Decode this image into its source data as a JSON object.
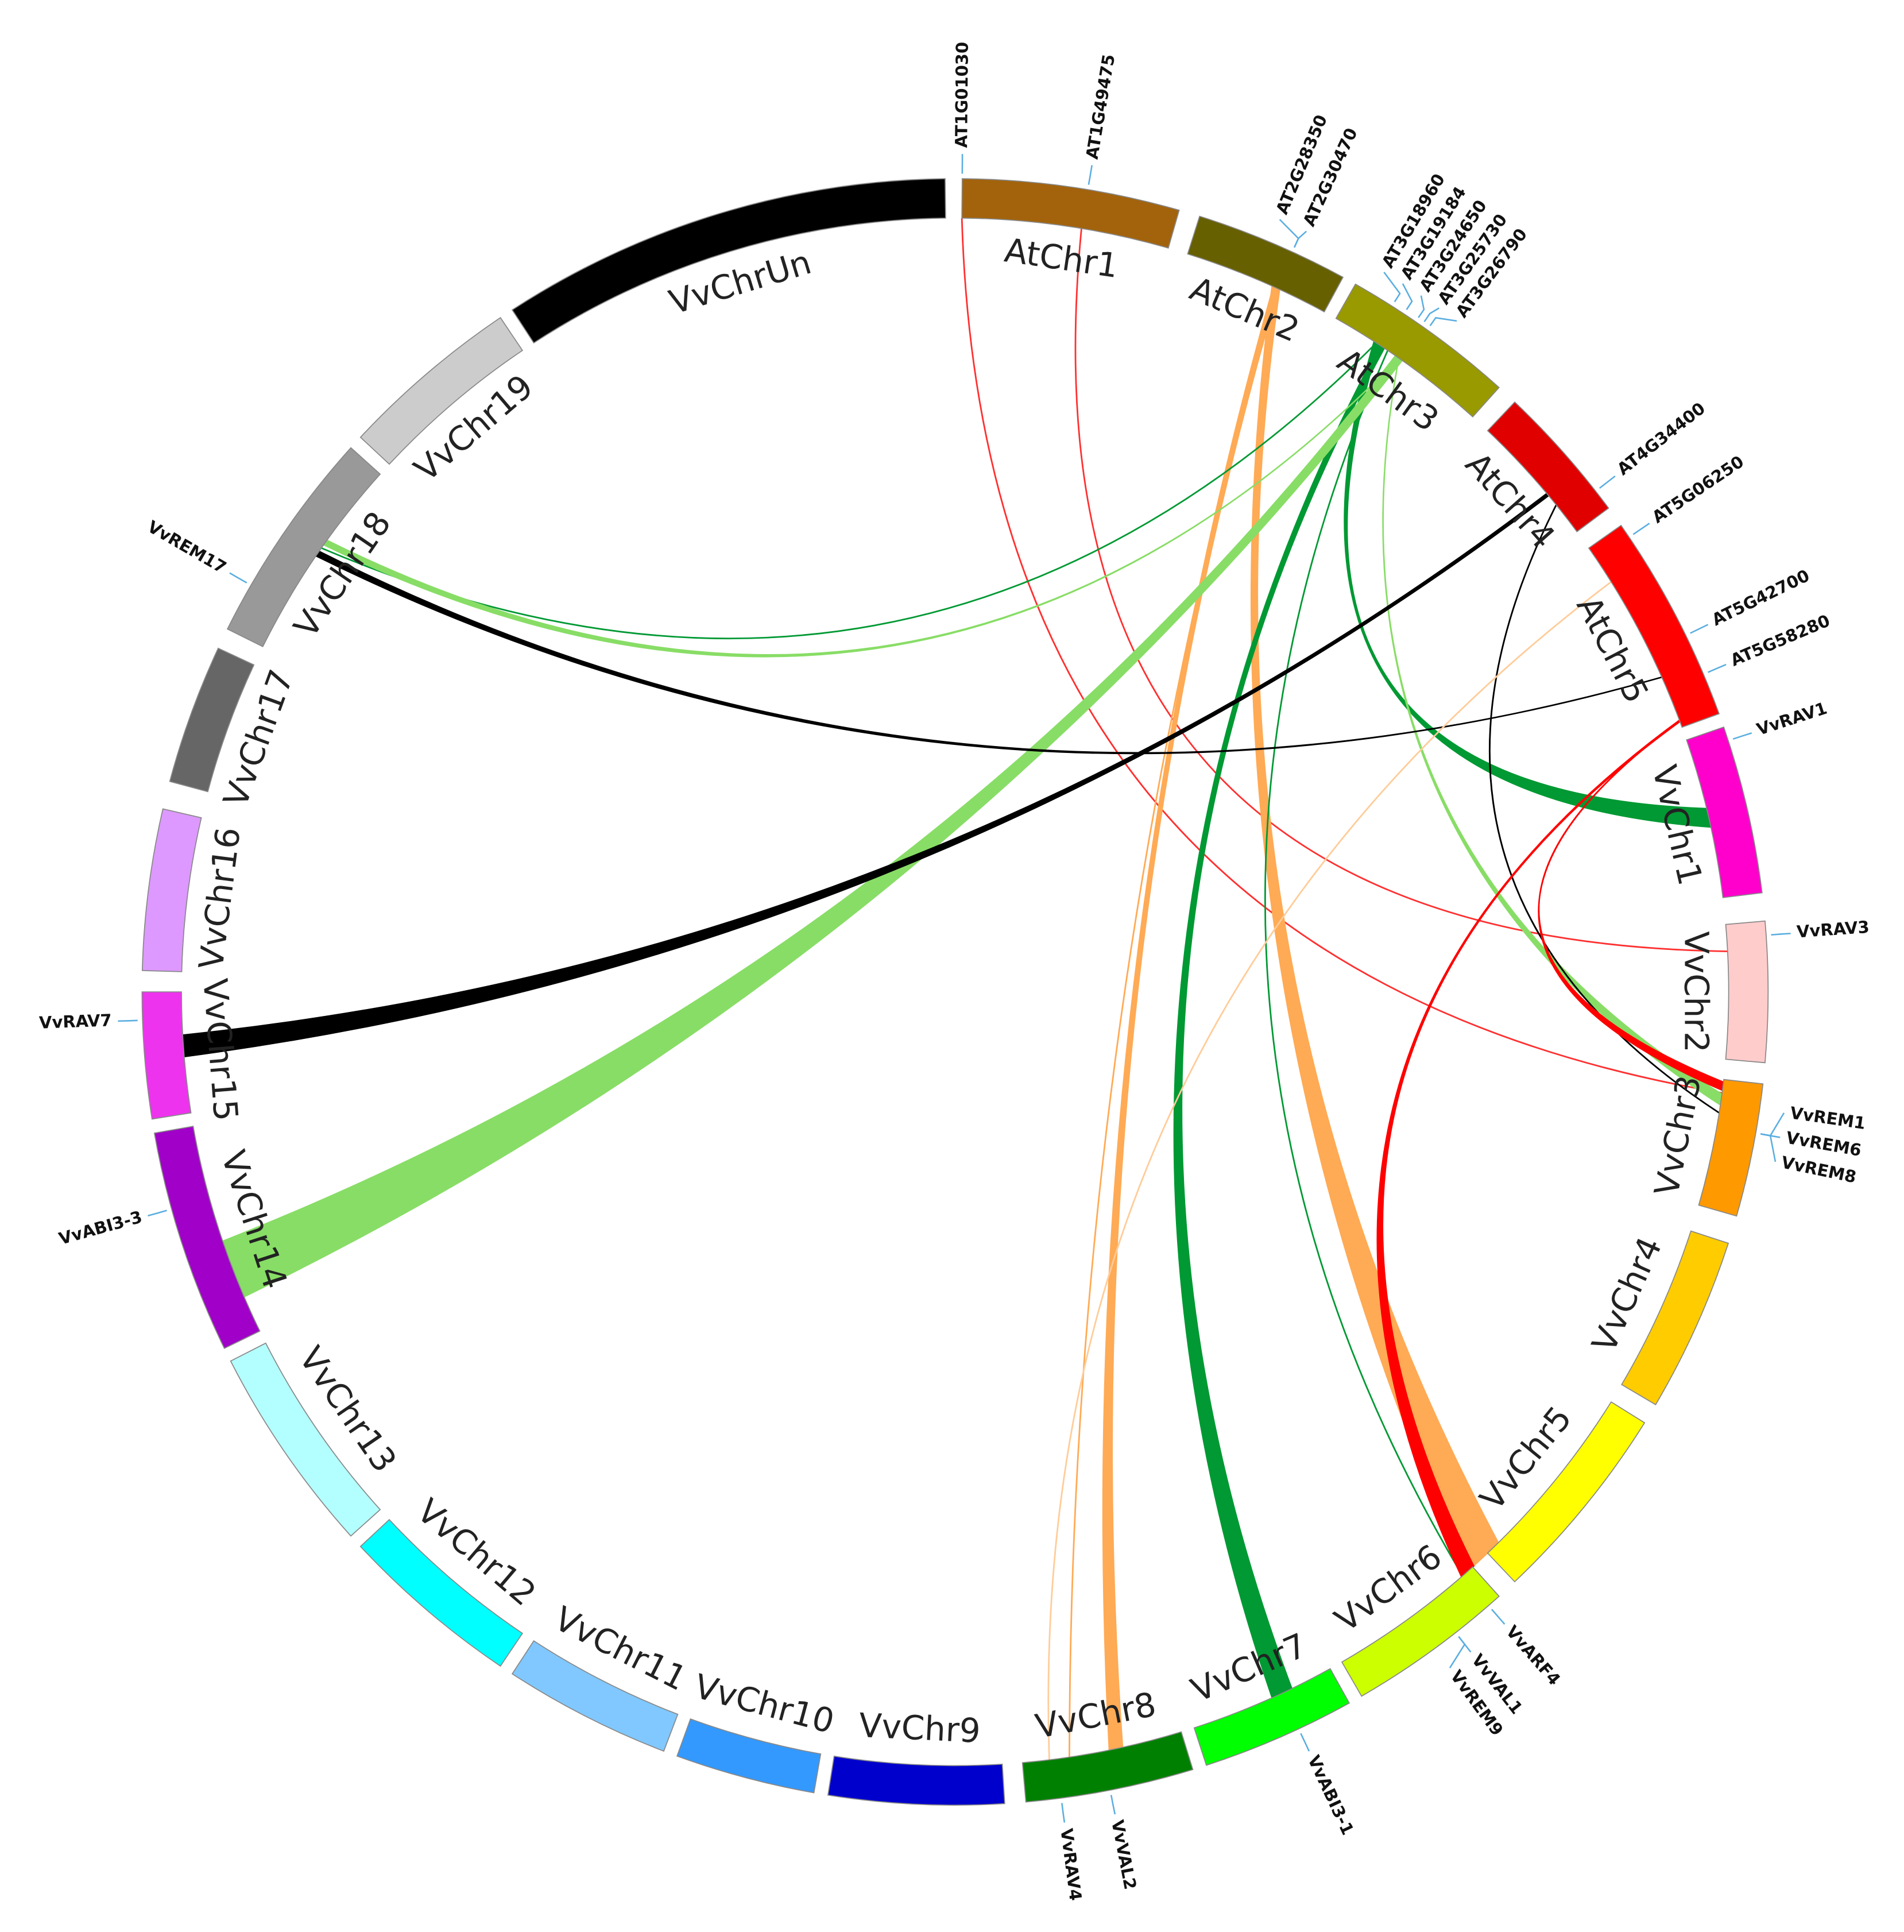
{
  "chromosomes": [
    {
      "label": "AtChr1",
      "color": "#a3630c"
    },
    {
      "label": "AtChr2",
      "color": "#666000"
    },
    {
      "label": "AtChr3",
      "color": "#999900"
    },
    {
      "label": "AtChr4",
      "color": "#e00000"
    },
    {
      "label": "AtChr5",
      "color": "#ff0000"
    },
    {
      "label": "VvChr1",
      "color": "#ff00cc"
    },
    {
      "label": "VvChr2",
      "color": "#ffcccc"
    },
    {
      "label": "VvChr3",
      "color": "#ff9900"
    },
    {
      "label": "VvChr4",
      "color": "#ffcc00"
    },
    {
      "label": "VvChr5",
      "color": "#ffff00"
    },
    {
      "label": "VvChr6",
      "color": "#ccff00"
    },
    {
      "label": "VvChr7",
      "color": "#00ff00"
    },
    {
      "label": "VvChr8",
      "color": "#008000"
    },
    {
      "label": "VvChr9",
      "color": "#0000cc"
    },
    {
      "label": "VvChr10",
      "color": "#3399ff"
    },
    {
      "label": "VvChr11",
      "color": "#80c8ff"
    },
    {
      "label": "VvChr12",
      "color": "#00ffff"
    },
    {
      "label": "VvChr13",
      "color": "#b3ffff"
    },
    {
      "label": "VvChr14",
      "color": "#a000c8"
    },
    {
      "label": "VvChr15",
      "color": "#ee33ee"
    },
    {
      "label": "VvChr16",
      "color": "#dd99ff"
    },
    {
      "label": "VvChr17",
      "color": "#666666"
    },
    {
      "label": "VvChr18",
      "color": "#999999"
    },
    {
      "label": "VvChr19",
      "color": "#cccccc"
    },
    {
      "label": "VvChrUn",
      "color": "#000000"
    }
  ],
  "genes": [
    {
      "label": "AT1G01030"
    },
    {
      "label": "AT1G49475"
    },
    {
      "label": "AT2G28350"
    },
    {
      "label": "AT2G30470"
    },
    {
      "label": "AT3G18960"
    },
    {
      "label": "AT3G19184"
    },
    {
      "label": "AT3G24650"
    },
    {
      "label": "AT3G25730"
    },
    {
      "label": "AT3G26790"
    },
    {
      "label": "AT4G34400"
    },
    {
      "label": "AT5G06250"
    },
    {
      "label": "AT5G42700"
    },
    {
      "label": "AT5G58280"
    },
    {
      "label": "VvRAV1"
    },
    {
      "label": "VvRAV3"
    },
    {
      "label": "VvREM1"
    },
    {
      "label": "VvREM6"
    },
    {
      "label": "VvREM8"
    },
    {
      "label": "VvARF4"
    },
    {
      "label": "VvVAL1"
    },
    {
      "label": "VvREM9"
    },
    {
      "label": "VvABI3-1"
    },
    {
      "label": "VvVAL2"
    },
    {
      "label": "VvRAV4"
    },
    {
      "label": "VvABI3-3"
    },
    {
      "label": "VvRAV7"
    },
    {
      "label": "VvREM17"
    }
  ]
}
